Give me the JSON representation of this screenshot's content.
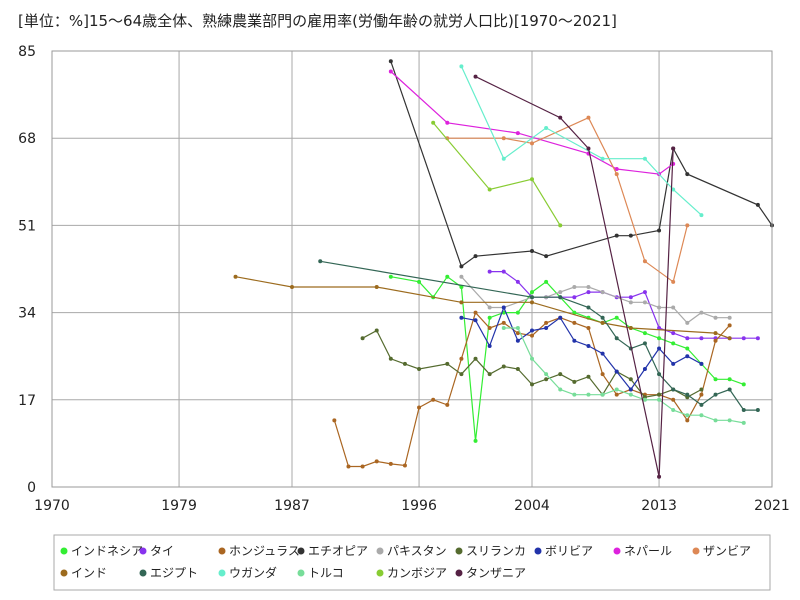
{
  "chart_data": {
    "type": "line",
    "title": "[単位：%]15～64歳全体、熟練農業部門の雇用率(労働年齢の就労人口比)[1970～2021]",
    "xlabel": "",
    "ylabel": "",
    "xlim": [
      1970,
      2021
    ],
    "ylim": [
      0,
      85
    ],
    "x_ticks": [
      1970,
      1979,
      1987,
      1996,
      2004,
      2013,
      2021
    ],
    "y_ticks": [
      0,
      17,
      34,
      51,
      68,
      85
    ],
    "grid": true,
    "legend_position": "bottom",
    "series": [
      {
        "name": "インドネシア",
        "color": "#33ee33",
        "points": [
          [
            1994,
            41
          ],
          [
            1996,
            40
          ],
          [
            1997,
            37
          ],
          [
            1998,
            41
          ],
          [
            1999,
            39
          ],
          [
            2000,
            9
          ],
          [
            2001,
            33
          ],
          [
            2002,
            34
          ],
          [
            2003,
            34
          ],
          [
            2004,
            38
          ],
          [
            2005,
            40
          ],
          [
            2006,
            37
          ],
          [
            2007,
            34
          ],
          [
            2008,
            33
          ],
          [
            2009,
            32
          ],
          [
            2010,
            33
          ],
          [
            2011,
            31
          ],
          [
            2012,
            30
          ],
          [
            2013,
            29
          ],
          [
            2014,
            28
          ],
          [
            2015,
            27
          ],
          [
            2016,
            24
          ],
          [
            2017,
            21
          ],
          [
            2018,
            21
          ],
          [
            2019,
            20
          ]
        ]
      },
      {
        "name": "タイ",
        "color": "#8833ee",
        "points": [
          [
            2001,
            42
          ],
          [
            2002,
            42
          ],
          [
            2003,
            40
          ],
          [
            2004,
            37
          ],
          [
            2005,
            37
          ],
          [
            2006,
            37
          ],
          [
            2007,
            37
          ],
          [
            2008,
            38
          ],
          [
            2009,
            38
          ],
          [
            2010,
            37
          ],
          [
            2011,
            37
          ],
          [
            2012,
            38
          ],
          [
            2013,
            31
          ],
          [
            2014,
            30
          ],
          [
            2015,
            29
          ],
          [
            2016,
            29
          ],
          [
            2017,
            29
          ],
          [
            2018,
            29
          ],
          [
            2019,
            29
          ],
          [
            2020,
            29
          ]
        ]
      },
      {
        "name": "ホンジュラス",
        "color": "#aa6622",
        "points": [
          [
            1990,
            13
          ],
          [
            1991,
            4
          ],
          [
            1992,
            4
          ],
          [
            1993,
            5
          ],
          [
            1994,
            4.5
          ],
          [
            1995,
            4.2
          ],
          [
            1996,
            15.5
          ],
          [
            1997,
            17
          ],
          [
            1998,
            16
          ],
          [
            1999,
            25
          ],
          [
            2000,
            34
          ],
          [
            2001,
            31
          ],
          [
            2002,
            32
          ],
          [
            2003,
            30
          ],
          [
            2004,
            29.5
          ],
          [
            2005,
            32
          ],
          [
            2006,
            33
          ],
          [
            2007,
            32
          ],
          [
            2008,
            31
          ],
          [
            2009,
            22
          ],
          [
            2010,
            18
          ],
          [
            2011,
            19
          ],
          [
            2012,
            18
          ],
          [
            2013,
            18
          ],
          [
            2014,
            17
          ],
          [
            2015,
            13
          ],
          [
            2016,
            18
          ],
          [
            2017,
            28.5
          ],
          [
            2018,
            31.5
          ]
        ]
      },
      {
        "name": "エチオピア",
        "color": "#333333",
        "points": [
          [
            1994,
            83
          ],
          [
            1999,
            43
          ],
          [
            2000,
            45
          ],
          [
            2004,
            46
          ],
          [
            2005,
            45
          ],
          [
            2010,
            49
          ],
          [
            2011,
            49
          ],
          [
            2013,
            50
          ],
          [
            2014,
            66
          ],
          [
            2015,
            61
          ],
          [
            2020,
            55
          ],
          [
            2021,
            51
          ]
        ]
      },
      {
        "name": "パキスタン",
        "color": "#aaaaaa",
        "points": [
          [
            1999,
            41
          ],
          [
            2001,
            35
          ],
          [
            2002,
            35
          ],
          [
            2004,
            37
          ],
          [
            2005,
            37
          ],
          [
            2006,
            38
          ],
          [
            2007,
            39
          ],
          [
            2008,
            39
          ],
          [
            2009,
            38
          ],
          [
            2011,
            36
          ],
          [
            2012,
            36
          ],
          [
            2013,
            35
          ],
          [
            2014,
            35
          ],
          [
            2015,
            32
          ],
          [
            2016,
            34
          ],
          [
            2017,
            33
          ],
          [
            2018,
            33
          ]
        ]
      },
      {
        "name": "スリランカ",
        "color": "#556b2f",
        "points": [
          [
            1992,
            29
          ],
          [
            1993,
            30.5
          ],
          [
            1994,
            25
          ],
          [
            1995,
            24
          ],
          [
            1996,
            23
          ],
          [
            1998,
            24
          ],
          [
            1999,
            22
          ],
          [
            2000,
            25
          ],
          [
            2001,
            22
          ],
          [
            2002,
            23.5
          ],
          [
            2003,
            23
          ],
          [
            2004,
            20
          ],
          [
            2005,
            21
          ],
          [
            2006,
            22
          ],
          [
            2007,
            20.5
          ],
          [
            2008,
            21.5
          ],
          [
            2009,
            18
          ],
          [
            2010,
            22.5
          ],
          [
            2011,
            21
          ],
          [
            2012,
            17.5
          ],
          [
            2013,
            18
          ],
          [
            2014,
            19
          ],
          [
            2015,
            17.5
          ],
          [
            2016,
            19
          ]
        ]
      },
      {
        "name": "ボリビア",
        "color": "#2233aa",
        "points": [
          [
            1999,
            33
          ],
          [
            2000,
            32.5
          ],
          [
            2001,
            27.5
          ],
          [
            2002,
            35
          ],
          [
            2003,
            28.5
          ],
          [
            2004,
            30.5
          ],
          [
            2005,
            31
          ],
          [
            2006,
            33
          ],
          [
            2007,
            28.5
          ],
          [
            2008,
            27.5
          ],
          [
            2009,
            26
          ],
          [
            2010,
            22.5
          ],
          [
            2011,
            19
          ],
          [
            2012,
            23
          ],
          [
            2013,
            27
          ],
          [
            2014,
            24
          ],
          [
            2015,
            25.5
          ],
          [
            2016,
            24
          ]
        ]
      },
      {
        "name": "ネパール",
        "color": "#dd22dd",
        "points": [
          [
            1994,
            81
          ],
          [
            1998,
            71
          ],
          [
            2003,
            69
          ],
          [
            2008,
            65
          ],
          [
            2010,
            62
          ],
          [
            2013,
            61
          ],
          [
            2014,
            63
          ]
        ]
      },
      {
        "name": "ザンビア",
        "color": "#dd8855",
        "points": [
          [
            1998,
            68
          ],
          [
            2002,
            68
          ],
          [
            2004,
            67
          ],
          [
            2008,
            72
          ],
          [
            2010,
            61
          ],
          [
            2012,
            44
          ],
          [
            2014,
            40
          ],
          [
            2015,
            51
          ]
        ]
      },
      {
        "name": "インド",
        "color": "#9c6b1e",
        "points": [
          [
            1983,
            41
          ],
          [
            1987,
            39
          ],
          [
            1993,
            39
          ],
          [
            1999,
            36
          ],
          [
            2004,
            36
          ],
          [
            2009,
            32
          ],
          [
            2011,
            31
          ],
          [
            2017,
            30
          ],
          [
            2018,
            29
          ]
        ]
      },
      {
        "name": "エジプト",
        "color": "#336655",
        "points": [
          [
            1989,
            44
          ],
          [
            2004,
            37
          ],
          [
            2006,
            37
          ],
          [
            2008,
            35
          ],
          [
            2009,
            33
          ],
          [
            2010,
            29
          ],
          [
            2011,
            27
          ],
          [
            2012,
            28
          ],
          [
            2013,
            22
          ],
          [
            2014,
            19
          ],
          [
            2015,
            18
          ],
          [
            2016,
            16
          ],
          [
            2017,
            18
          ],
          [
            2018,
            19
          ],
          [
            2019,
            15
          ],
          [
            2020,
            15
          ]
        ]
      },
      {
        "name": "ウガンダ",
        "color": "#66eecc",
        "points": [
          [
            1999,
            82
          ],
          [
            2002,
            64
          ],
          [
            2005,
            70
          ],
          [
            2009,
            64
          ],
          [
            2012,
            64
          ],
          [
            2014,
            58
          ],
          [
            2016,
            53
          ]
        ]
      },
      {
        "name": "トルコ",
        "color": "#77dd99",
        "points": [
          [
            2002,
            31
          ],
          [
            2003,
            31
          ],
          [
            2004,
            25
          ],
          [
            2005,
            22
          ],
          [
            2006,
            19
          ],
          [
            2007,
            18
          ],
          [
            2008,
            18
          ],
          [
            2009,
            18
          ],
          [
            2010,
            19
          ],
          [
            2011,
            18
          ],
          [
            2012,
            17
          ],
          [
            2013,
            17
          ],
          [
            2014,
            15
          ],
          [
            2015,
            14
          ],
          [
            2016,
            14
          ],
          [
            2017,
            13
          ],
          [
            2018,
            13
          ],
          [
            2019,
            12.5
          ]
        ]
      },
      {
        "name": "カンボジア",
        "color": "#88cc33",
        "points": [
          [
            1997,
            71
          ],
          [
            2001,
            58
          ],
          [
            2004,
            60
          ],
          [
            2006,
            51
          ]
        ]
      },
      {
        "name": "タンザニア",
        "color": "#552244",
        "points": [
          [
            2000,
            80
          ],
          [
            2006,
            72
          ],
          [
            2008,
            66
          ],
          [
            2013,
            2
          ],
          [
            2014,
            66
          ]
        ]
      }
    ]
  }
}
